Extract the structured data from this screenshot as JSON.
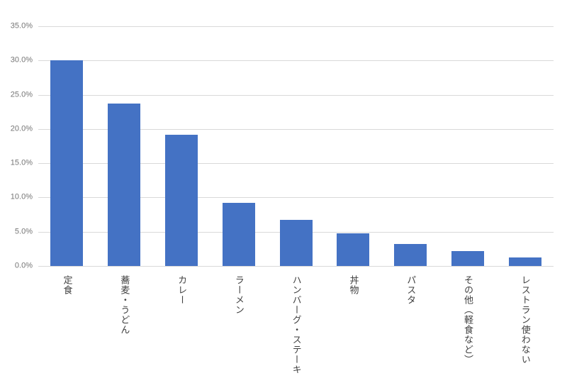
{
  "chart_data": {
    "type": "bar",
    "title": "",
    "xlabel": "",
    "ylabel": "",
    "categories": [
      "定食",
      "蕎麦・うどん",
      "カレー",
      "ラーメン",
      "ハンバーグ・ステーキ",
      "丼物",
      "パスタ",
      "その他（軽食など）",
      "レストラン使わない"
    ],
    "values": [
      30.0,
      23.7,
      19.2,
      9.2,
      6.7,
      4.8,
      3.2,
      2.2,
      1.2
    ],
    "value_unit": "%",
    "ylim": [
      0,
      35
    ],
    "y_tick_step": 5,
    "y_tick_labels": [
      "0.0%",
      "5.0%",
      "10.0%",
      "15.0%",
      "20.0%",
      "25.0%",
      "30.0%",
      "35.0%"
    ],
    "grid": true,
    "legend": false,
    "colors": {
      "bar": "#4472c4",
      "gridline": "#d9d9d9",
      "y_tick_label": "#757575",
      "category_label": "#404040"
    }
  }
}
